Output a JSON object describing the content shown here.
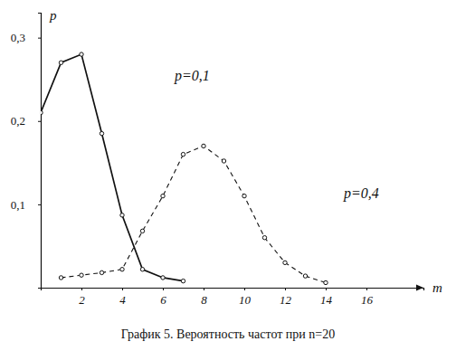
{
  "chart_data": {
    "type": "line",
    "title": "График 5. Вероятность частот при n=20",
    "x_label": "m",
    "y_label": "p",
    "x": [
      0,
      1,
      2,
      3,
      4,
      5,
      6,
      7,
      8,
      9,
      10,
      11,
      12,
      13,
      14
    ],
    "series": [
      {
        "name": "p=0,1",
        "color": "#111111",
        "line_style": "solid",
        "marker": "circle",
        "values": [
          0.21,
          0.27,
          0.28,
          0.185,
          0.087,
          0.022,
          0.012,
          0.008,
          null,
          null,
          null,
          null,
          null,
          null,
          null
        ]
      },
      {
        "name": "p=0,4",
        "color": "#111111",
        "line_style": "dashed",
        "marker": "circle",
        "values": [
          null,
          0.012,
          0.015,
          0.018,
          0.022,
          0.068,
          0.11,
          0.16,
          0.17,
          0.152,
          0.11,
          0.06,
          0.03,
          0.014,
          0.006
        ]
      }
    ],
    "xlim": [
      0,
      18.8
    ],
    "ylim": [
      0,
      0.33
    ],
    "xticks": [
      2,
      4,
      6,
      8,
      10,
      12,
      14,
      16
    ],
    "yticks": [
      {
        "value": 0.1,
        "label": "0,1"
      },
      {
        "value": 0.2,
        "label": "0,2"
      },
      {
        "value": 0.3,
        "label": "0,3"
      }
    ],
    "grid": false
  }
}
